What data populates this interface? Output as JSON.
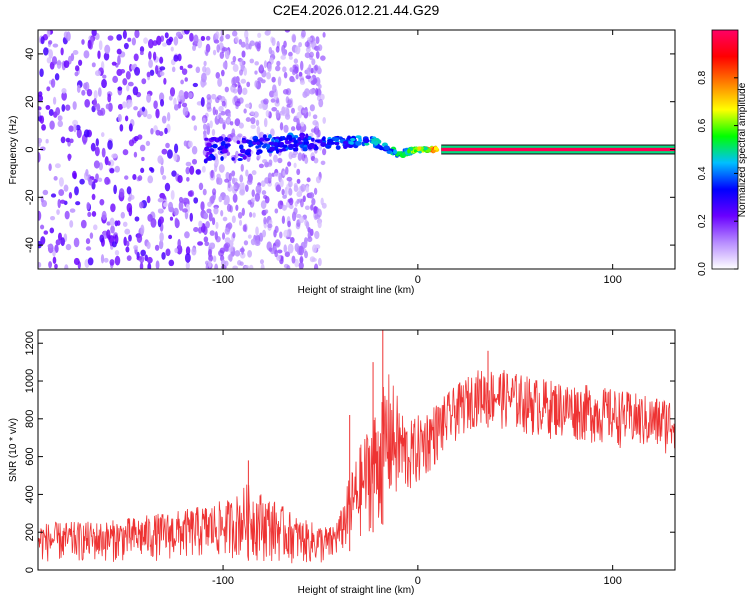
{
  "chart_data": [
    {
      "type": "heatmap",
      "title": "C2E4.2026.012.21.44.G29",
      "xlabel": "Height of straight line (km)",
      "ylabel": "Frequency (Hz)",
      "xlim": [
        -195,
        132
      ],
      "ylim": [
        -50,
        50
      ],
      "xticks": [
        -100,
        0,
        100
      ],
      "yticks": [
        -40,
        -20,
        0,
        20,
        40
      ],
      "colorbar": {
        "label": "Normalized spectral amplitude",
        "range": [
          0,
          1
        ],
        "ticks": [
          0.0,
          0.2,
          0.4,
          0.6,
          0.8
        ],
        "colormap": [
          "#ffffff",
          "#b78cff",
          "#6a00ff",
          "#0000ff",
          "#00bfff",
          "#00ff00",
          "#ffff00",
          "#ff7f00",
          "#ff0000",
          "#ff0066"
        ]
      },
      "features": {
        "noise_region_x": [
          -195,
          -50
        ],
        "broad_patch_x": [
          -110,
          -48
        ],
        "converging_signal": [
          {
            "x": -110,
            "f": 0,
            "amp": 0.35
          },
          {
            "x": -90,
            "f": 0,
            "amp": 0.38
          },
          {
            "x": -70,
            "f": 3,
            "amp": 0.42
          },
          {
            "x": -55,
            "f": 3,
            "amp": 0.4
          },
          {
            "x": -40,
            "f": 3,
            "amp": 0.45
          },
          {
            "x": -25,
            "f": 4,
            "amp": 0.5
          },
          {
            "x": -10,
            "f": -2,
            "amp": 0.55
          },
          {
            "x": 0,
            "f": 0,
            "amp": 0.7
          },
          {
            "x": 10,
            "f": 0,
            "amp": 0.9
          }
        ],
        "locked_line": {
          "x_start": 12,
          "x_end": 132,
          "f": 0,
          "amp": 0.98
        }
      }
    },
    {
      "type": "line",
      "xlabel": "Height of straight line (km)",
      "ylabel": "SNR (10 * v/v)",
      "xlim": [
        -195,
        132
      ],
      "ylim": [
        0,
        1270
      ],
      "xticks": [
        -100,
        0,
        100
      ],
      "yticks": [
        0,
        200,
        400,
        600,
        800,
        1000,
        1200
      ],
      "color": "#ee3333",
      "series": [
        {
          "name": "SNR",
          "envelope": [
            {
              "x": -195,
              "low": 40,
              "high": 250
            },
            {
              "x": -160,
              "low": 40,
              "high": 260
            },
            {
              "x": -120,
              "low": 50,
              "high": 320
            },
            {
              "x": -95,
              "low": 60,
              "high": 380
            },
            {
              "x": -88,
              "low": 50,
              "high": 460
            },
            {
              "x": -75,
              "low": 40,
              "high": 380
            },
            {
              "x": -60,
              "low": 30,
              "high": 270
            },
            {
              "x": -45,
              "low": 20,
              "high": 230
            },
            {
              "x": -40,
              "low": 80,
              "high": 300
            },
            {
              "x": -35,
              "low": 100,
              "high": 500
            },
            {
              "x": -30,
              "low": 150,
              "high": 650
            },
            {
              "x": -25,
              "low": 200,
              "high": 780
            },
            {
              "x": -20,
              "low": 200,
              "high": 900
            },
            {
              "x": -15,
              "low": 300,
              "high": 1050
            },
            {
              "x": -5,
              "low": 380,
              "high": 780
            },
            {
              "x": 0,
              "low": 430,
              "high": 820
            },
            {
              "x": 10,
              "low": 560,
              "high": 890
            },
            {
              "x": 20,
              "low": 680,
              "high": 980
            },
            {
              "x": 30,
              "low": 760,
              "high": 1060
            },
            {
              "x": 40,
              "low": 750,
              "high": 1070
            },
            {
              "x": 60,
              "low": 700,
              "high": 1020
            },
            {
              "x": 80,
              "low": 680,
              "high": 990
            },
            {
              "x": 100,
              "low": 650,
              "high": 960
            },
            {
              "x": 120,
              "low": 620,
              "high": 920
            },
            {
              "x": 132,
              "low": 600,
              "high": 920
            }
          ],
          "spikes": [
            {
              "x": -18,
              "value": 1270
            },
            {
              "x": -23,
              "value": 1100
            },
            {
              "x": -35,
              "value": 820
            },
            {
              "x": -87,
              "value": 580
            },
            {
              "x": 36,
              "value": 1160
            }
          ]
        }
      ]
    }
  ]
}
